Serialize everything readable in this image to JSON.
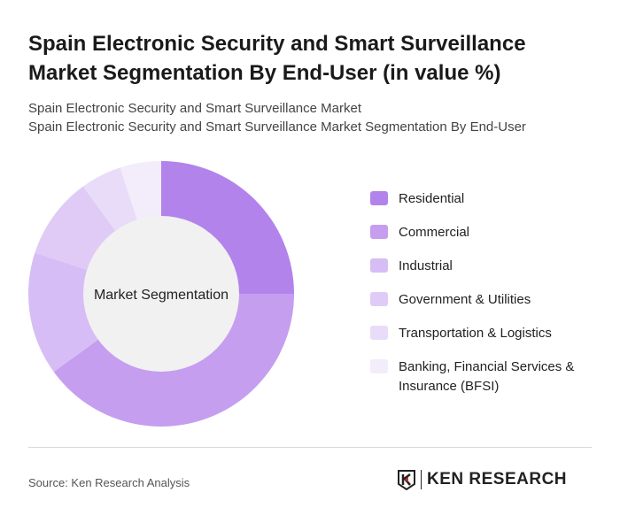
{
  "title": "Spain Electronic Security and Smart Surveillance Market Segmentation By End-User (in value %)",
  "subtitle_1": "Spain Electronic Security and Smart Surveillance Market",
  "subtitle_2": "Spain Electronic Security and Smart Surveillance Market Segmentation By End-User",
  "source": "Source: Ken Research Analysis",
  "logo_text": "KEN RESEARCH",
  "chart_data": {
    "type": "pie",
    "variant": "donut",
    "center_label": "Market Segmentation",
    "legend_position": "right",
    "categories": [
      "Residential",
      "Commercial",
      "Industrial",
      "Government & Utilities",
      "Transportation & Logistics",
      "Banking, Financial Services & Insurance (BFSI)"
    ],
    "values": [
      25,
      40,
      15,
      10,
      5,
      5
    ],
    "colors": [
      "#b383ec",
      "#c59ef0",
      "#d7bdf5",
      "#e0cbf7",
      "#e9dcf9",
      "#f2ecfb"
    ]
  }
}
